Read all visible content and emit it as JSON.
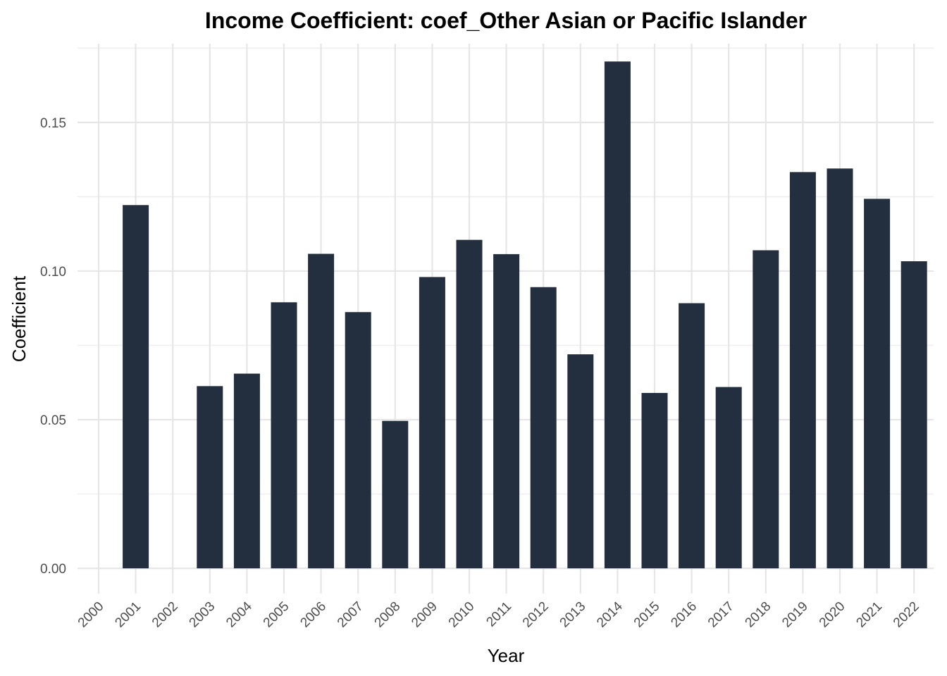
{
  "chart_data": {
    "type": "bar",
    "title": "Income Coefficient: coef_Other Asian or Pacific Islander",
    "xlabel": "Year",
    "ylabel": "Coefficient",
    "categories": [
      "2000",
      "2001",
      "2002",
      "2003",
      "2004",
      "2005",
      "2006",
      "2007",
      "2008",
      "2009",
      "2010",
      "2011",
      "2012",
      "2013",
      "2014",
      "2015",
      "2016",
      "2017",
      "2018",
      "2019",
      "2020",
      "2021",
      "2022"
    ],
    "values": [
      null,
      0.1222,
      null,
      0.0613,
      0.0655,
      0.0895,
      0.1058,
      0.0862,
      0.0496,
      0.098,
      0.1105,
      0.1057,
      0.0946,
      0.072,
      0.1705,
      0.059,
      0.0892,
      0.061,
      0.107,
      0.1333,
      0.1345,
      0.1243,
      0.1033
    ],
    "yticks": [
      "0.00",
      "0.05",
      "0.10",
      "0.15"
    ],
    "ylim": [
      -0.0085,
      0.1765
    ],
    "grid": true,
    "legend": "none",
    "bar_color": "#232F3E",
    "grid_color": "#E6E6E6"
  }
}
